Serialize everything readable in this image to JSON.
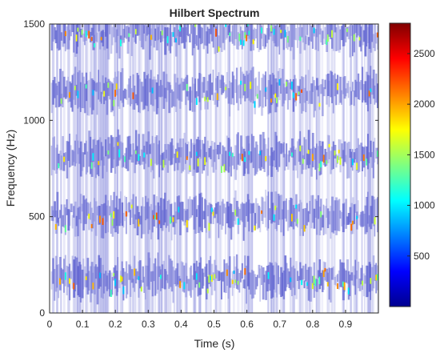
{
  "chart_data": {
    "type": "heatmap",
    "title": "Hilbert Spectrum",
    "xlabel": "Time (s)",
    "ylabel": "Frequency (Hz)",
    "xlim": [
      0,
      1
    ],
    "ylim": [
      0,
      1500
    ],
    "x_ticks": [
      "0",
      "0.1",
      "0.2",
      "0.3",
      "0.4",
      "0.5",
      "0.6",
      "0.7",
      "0.8",
      "0.9"
    ],
    "x_tick_values": [
      0,
      0.1,
      0.2,
      0.3,
      0.4,
      0.5,
      0.6,
      0.7,
      0.8,
      0.9
    ],
    "y_ticks": [
      "0",
      "500",
      "1000",
      "1500"
    ],
    "y_tick_values": [
      0,
      500,
      1000,
      1500
    ],
    "colorbar": {
      "colormap": "jet",
      "range": [
        0,
        2800
      ],
      "ticks": [
        "500",
        "1000",
        "1500",
        "2000",
        "2500"
      ],
      "tick_values": [
        500,
        1000,
        1500,
        2000,
        2500
      ]
    },
    "frequency_bands_hz": [
      180,
      510,
      820,
      1150,
      1450
    ],
    "band_spread_hz": 40,
    "grid": false,
    "colors": {
      "trace": "#5a5ecf",
      "background": "#ffffff",
      "axis": "#262626"
    }
  }
}
